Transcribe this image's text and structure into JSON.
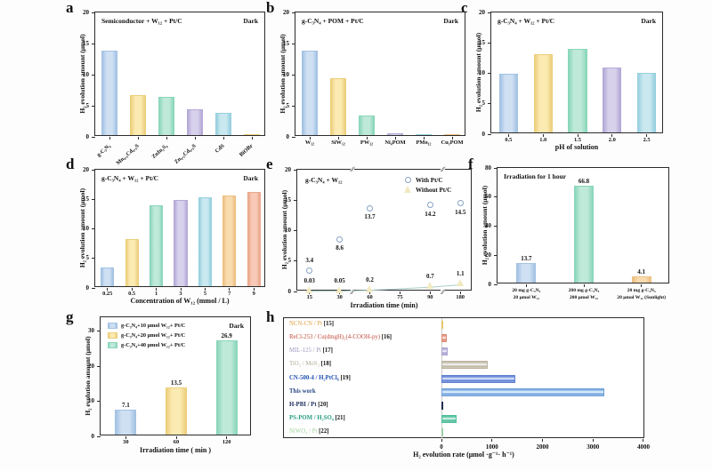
{
  "page": {
    "background": "#fdfdfd"
  },
  "palette": {
    "blue": {
      "fill": "#cfe0f3",
      "edge": "#a3c2e3"
    },
    "yellow": {
      "fill": "#fbeab2",
      "edge": "#eccf7c"
    },
    "green": {
      "fill": "#bfe9d9",
      "edge": "#8ad6ba"
    },
    "purple": {
      "fill": "#d8d1ec",
      "edge": "#b4a9d7"
    },
    "cyan": {
      "fill": "#c9e8ef",
      "edge": "#97d0df"
    },
    "orange": {
      "fill": "#f8dcb0",
      "edge": "#eebf82"
    },
    "salmon": {
      "fill": "#f7c9b6",
      "edge": "#eba78c"
    }
  },
  "chart_data": [
    {
      "panel": "a",
      "type": "bar",
      "title": "Semiconductor + W₁₂ + Pt/C",
      "corner_label": "Dark",
      "ylabel": "H₂ evolution amount (μmol)",
      "xlabel": "",
      "categories": [
        "g-C₃N₄",
        "Mn₀.₅Cd₀.₅S",
        "ZnIn₂S₄",
        "Zn₀.₅Cd₀.₅S",
        "CdS",
        "BiOBr"
      ],
      "values": [
        13.6,
        6.5,
        6.1,
        4.2,
        3.6,
        0.15
      ],
      "colors": [
        "blue",
        "yellow",
        "green",
        "purple",
        "cyan",
        "yellow"
      ],
      "ylim": [
        0,
        20
      ],
      "yticks": [
        0,
        5,
        10,
        15,
        20
      ],
      "rotate_xlabels": true
    },
    {
      "panel": "b",
      "type": "bar",
      "title": "g-C₃N₄ + POM + Pt/C",
      "corner_label": "Dark",
      "ylabel": "H₂ evolution amount (μmol)",
      "xlabel": "",
      "categories": [
        "W₁₂",
        "SiW₁₂",
        "PW₁₂",
        "Ni₄POM",
        "PMo₁₂",
        "Cu₃POM"
      ],
      "values": [
        13.6,
        9.2,
        3.1,
        0.35,
        0.2,
        0.15
      ],
      "colors": [
        "blue",
        "yellow",
        "green",
        "purple",
        "cyan",
        "orange"
      ],
      "ylim": [
        0,
        20
      ],
      "yticks": [
        0,
        5,
        10,
        15,
        20
      ]
    },
    {
      "panel": "c",
      "type": "bar",
      "title": "g-C₃N₄ + W₁₂ + Pt/C",
      "corner_label": "Dark",
      "ylabel": "H₂ evolution amount (μmol)",
      "xlabel": "pH of solution",
      "categories": [
        "0.5",
        "1.0",
        "1.5",
        "2.0",
        "2.5"
      ],
      "values": [
        9.6,
        12.9,
        13.7,
        10.7,
        9.8
      ],
      "colors": [
        "blue",
        "yellow",
        "green",
        "purple",
        "cyan"
      ],
      "ylim": [
        0,
        20
      ],
      "yticks": [
        0,
        5,
        10,
        15,
        20
      ]
    },
    {
      "panel": "d",
      "type": "bar",
      "title": "g-C₃N₄ + W₁₂ + Pt/C",
      "corner_label": "Dark",
      "ylabel": "H₂ evolution amount (μmol)",
      "xlabel": "Concentration of W₁₂ (mmol / L)",
      "categories": [
        "0.25",
        "0.5",
        "1",
        "3",
        "5",
        "7",
        "9"
      ],
      "values": [
        3.1,
        8.0,
        13.7,
        14.6,
        15.0,
        15.4,
        15.9
      ],
      "colors": [
        "blue",
        "yellow",
        "green",
        "purple",
        "cyan",
        "orange",
        "salmon"
      ],
      "ylim": [
        0,
        20
      ],
      "yticks": [
        0,
        5,
        10,
        15,
        20
      ]
    },
    {
      "panel": "e",
      "type": "scatter",
      "title": "g-C₃N₄ + W₁₂",
      "corner_label": "",
      "ylabel": "H₂ evolution amount (μmol)",
      "xlabel": "Irradiation time (min)",
      "xticks": [
        "15",
        "30",
        "60",
        "75",
        "90",
        "180"
      ],
      "ylim": [
        0,
        20
      ],
      "yticks": [
        0,
        5,
        10,
        15,
        20
      ],
      "series": [
        {
          "name": "With Pt/C",
          "marker": "circle",
          "marker_color": "#87a3c3",
          "x": [
            15,
            30,
            60,
            90,
            180
          ],
          "ticks": [
            0,
            1,
            2,
            4,
            5
          ],
          "y": [
            3.4,
            8.6,
            13.7,
            14.2,
            14.5
          ],
          "labels": [
            "3.4",
            "8.6",
            "13.7",
            "14.2",
            "14.5"
          ],
          "label_pos": [
            "above",
            "below",
            "below",
            "below",
            "below"
          ]
        },
        {
          "name": "Without Pt/C",
          "marker": "triangle",
          "marker_color": "#f1e9c0",
          "marker_edge": "#d9cd92",
          "line_color": "#a9cdc9",
          "x": [
            15,
            30,
            60,
            90,
            180
          ],
          "ticks": [
            0,
            1,
            2,
            4,
            5
          ],
          "y": [
            0.03,
            0.05,
            0.2,
            0.7,
            1.1
          ],
          "labels": [
            "0.03",
            "0.05",
            "0.2",
            "0.7",
            "1.1"
          ],
          "label_pos": [
            "above",
            "above",
            "above",
            "above",
            "above"
          ]
        }
      ]
    },
    {
      "panel": "f",
      "type": "bar",
      "title": "Irradiation for 1 hour",
      "corner_label": "",
      "ylabel": "H₂ evolution amount (μmol)",
      "xlabel": "",
      "categories": [
        [
          "20 mg g-C₃N₄",
          "20 μmol W₁₂"
        ],
        [
          "200 mg g-C₃N₄",
          "200 μmol W₁₂"
        ],
        [
          "20 mg g-C₃N₄",
          "20 μmol W₁₂ (Sunlight)"
        ]
      ],
      "values": [
        13.7,
        66.8,
        4.1
      ],
      "value_labels": [
        "13.7",
        "66.8",
        "4.1"
      ],
      "colors": [
        "blue",
        "green",
        "orange"
      ],
      "ylim": [
        0,
        80
      ],
      "yticks": [
        0,
        20,
        40,
        60,
        80
      ],
      "two_line_xlabels": true,
      "bar_frac": 0.34
    },
    {
      "panel": "g",
      "type": "bar",
      "title": "",
      "corner_label": "Dark",
      "ylabel": "H₂ evolution amount (μmol)",
      "xlabel": "Irradiation time ( min )",
      "legend": [
        {
          "label": "g-C₃N₄+10 μmol W₁₂+ Pt/C",
          "color": "blue"
        },
        {
          "label": "g-C₃N₄+20 μmol W₁₂+ Pt/C",
          "color": "yellow"
        },
        {
          "label": "g-C₃N₄+40 μmol W₁₂+ Pt/C",
          "color": "green"
        }
      ],
      "categories": [
        "30",
        "60",
        "120"
      ],
      "values": [
        7.1,
        13.5,
        26.9
      ],
      "value_labels": [
        "7.1",
        "13.5",
        "26.9"
      ],
      "colors": [
        "blue",
        "yellow",
        "green"
      ],
      "ylim": [
        0,
        34
      ],
      "yticks": [
        0,
        10,
        20,
        30
      ],
      "bar_frac": 0.42
    },
    {
      "panel": "h",
      "type": "hbar",
      "xlabel": "H₂ evolution rate (μmol ·g⁻¹· h⁻¹)",
      "xlim": [
        0,
        4000
      ],
      "xticks": [
        0,
        1000,
        2000,
        3000,
        4000
      ],
      "entries": [
        {
          "label": "NCN-CN / Pt",
          "ref": "[15]",
          "value": 30,
          "bar_color": "#f3e3a8",
          "bar_edge": "#e4c668",
          "label_color": "#dfa143",
          "bold": false
        },
        {
          "label": "ReCl-253 / Cu(dmgH)₂(4-COOH-py)",
          "ref": "[16]",
          "value": 110,
          "bar_color": "#f0b3a2",
          "bar_edge": "#dd8a74",
          "label_color": "#bf4a38",
          "bold": false
        },
        {
          "label": "MIL-125 / Pt",
          "ref": "[17]",
          "value": 120,
          "bar_color": "#cdc6e6",
          "bar_edge": "#aaa2cd",
          "label_color": "#9d97bd",
          "bold": false
        },
        {
          "label": "TiO₂ / MoS₂",
          "ref": "[18]",
          "value": 920,
          "bar_color": "#d8d2c5",
          "bar_edge": "#bcb4a0",
          "label_color": "#b3a995",
          "bold": false
        },
        {
          "label": "CN-500-4 / H₂PtCl₆",
          "ref": "[19]",
          "value": 1470,
          "bar_color": "#91abe8",
          "bar_edge": "#5f7fd0",
          "label_color": "#2050b0",
          "bold": true
        },
        {
          "label": "This work",
          "ref": "",
          "value": 3230,
          "bar_color": "#a9cdf2",
          "bar_edge": "#6f9fd8",
          "label_color": "#2b4a86",
          "bold": true
        },
        {
          "label": "H-PBI / Pt",
          "ref": "[20]",
          "value": 15,
          "bar_color": "#33406e",
          "bar_edge": "#222c50",
          "label_color": "#20315e",
          "bold": true
        },
        {
          "label": "PS-POM / H₂SO₄",
          "ref": "[21]",
          "value": 300,
          "bar_color": "#84d6ba",
          "bar_edge": "#4cbd97",
          "label_color": "#2b9e85",
          "bold": true
        },
        {
          "label": "NiWO₄ / Pt",
          "ref": "[22]",
          "value": 15,
          "bar_color": "#bfe3c4",
          "bar_edge": "#9acfa2",
          "label_color": "#a0cf9b",
          "bold": false
        }
      ]
    }
  ]
}
